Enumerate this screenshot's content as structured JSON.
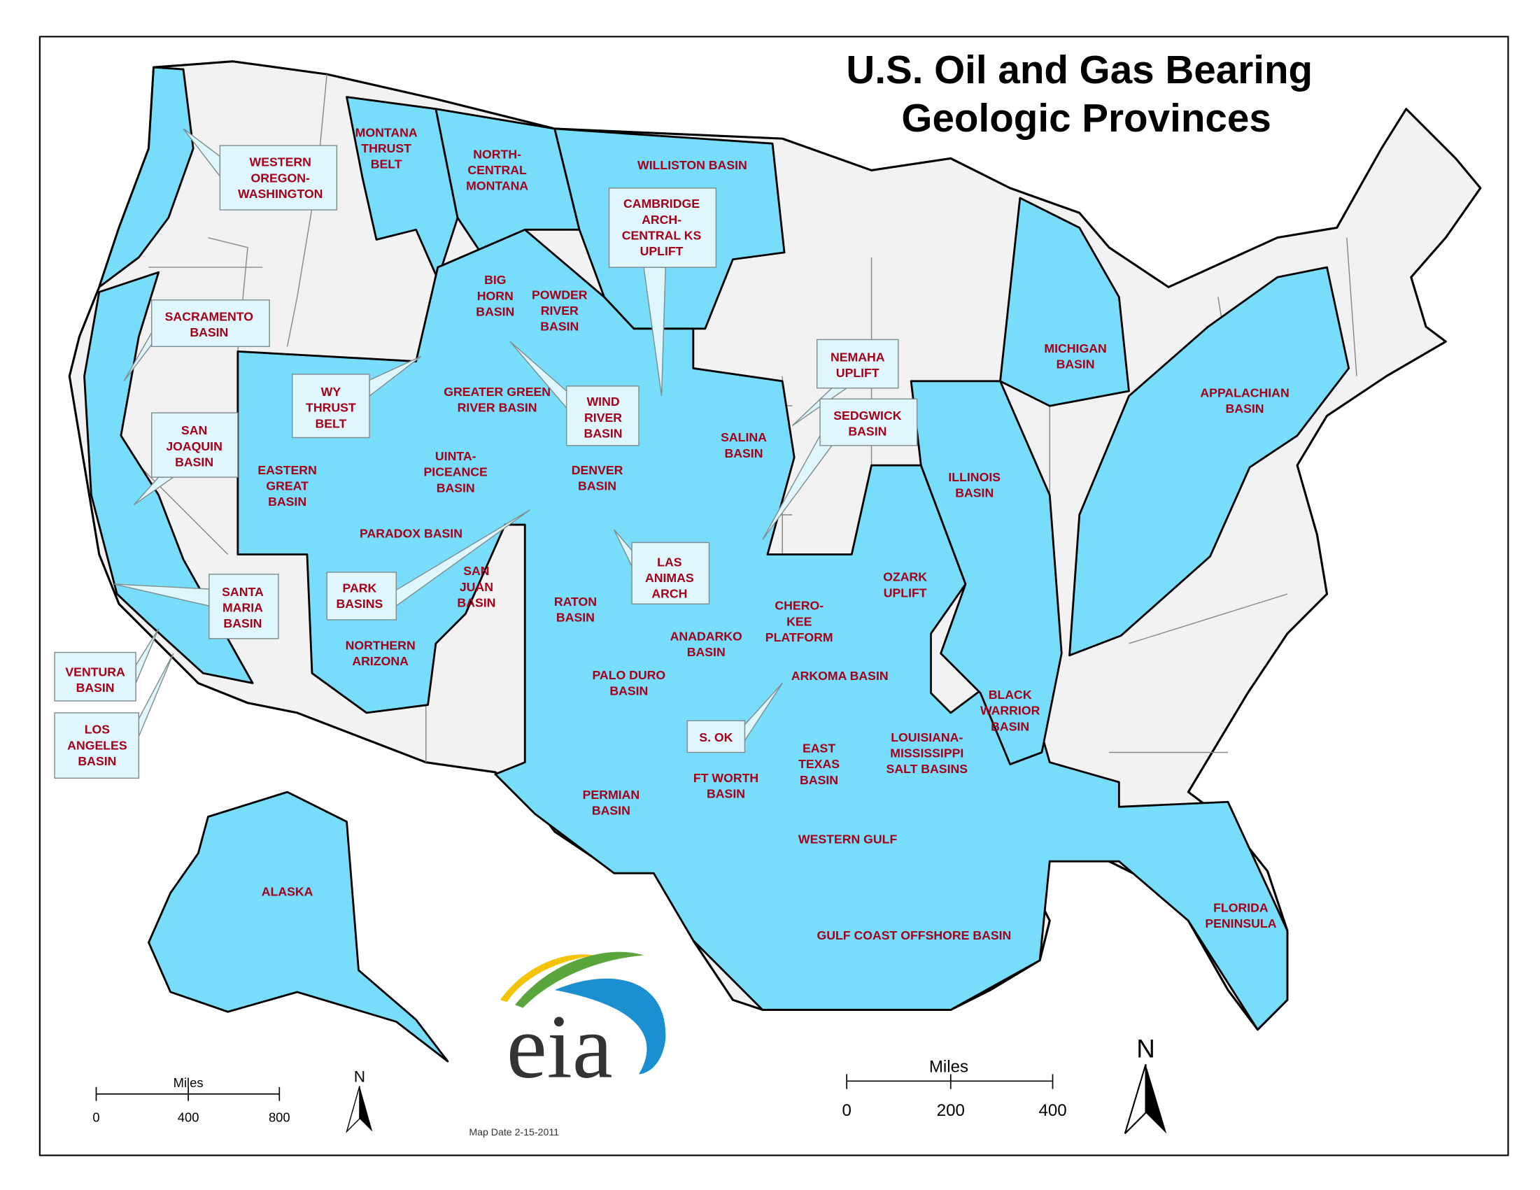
{
  "title": {
    "line1": "U.S. Oil and Gas Bearing",
    "line2": "Geologic Provinces"
  },
  "colors": {
    "province_fill": "#78ddfa",
    "non_province_fill": "#f2f2f2",
    "label_text": "#a3001b",
    "callout_fill": "#dff7fc"
  },
  "labels": [
    {
      "lines": [
        "WESTERN",
        "OREGON-",
        "WASHINGTON"
      ],
      "callout": true
    },
    {
      "lines": [
        "MONTANA",
        "THRUST",
        "BELT"
      ],
      "callout": false
    },
    {
      "lines": [
        "NORTH-",
        "CENTRAL",
        "MONTANA"
      ],
      "callout": false
    },
    {
      "lines": [
        "WILLISTON BASIN"
      ],
      "callout": false
    },
    {
      "lines": [
        "CAMBRIDGE",
        "ARCH-",
        "CENTRAL KS",
        "UPLIFT"
      ],
      "callout": true
    },
    {
      "lines": [
        "BIG",
        "HORN",
        "BASIN"
      ],
      "callout": false
    },
    {
      "lines": [
        "POWDER",
        "RIVER",
        "BASIN"
      ],
      "callout": false
    },
    {
      "lines": [
        "SACRAMENTO",
        "BASIN"
      ],
      "callout": true
    },
    {
      "lines": [
        "WY",
        "THRUST",
        "BELT"
      ],
      "callout": true
    },
    {
      "lines": [
        "GREATER GREEN",
        "RIVER BASIN"
      ],
      "callout": false
    },
    {
      "lines": [
        "WIND",
        "RIVER",
        "BASIN"
      ],
      "callout": true
    },
    {
      "lines": [
        "NEMAHA",
        "UPLIFT"
      ],
      "callout": true
    },
    {
      "lines": [
        "SEDGWICK",
        "BASIN"
      ],
      "callout": true
    },
    {
      "lines": [
        "MICHIGAN",
        "BASIN"
      ],
      "callout": false
    },
    {
      "lines": [
        "APPALACHIAN",
        "BASIN"
      ],
      "callout": false
    },
    {
      "lines": [
        "SALINA",
        "BASIN"
      ],
      "callout": false
    },
    {
      "lines": [
        "SAN",
        "JOAQUIN",
        "BASIN"
      ],
      "callout": true
    },
    {
      "lines": [
        "EASTERN",
        "GREAT",
        "BASIN"
      ],
      "callout": false
    },
    {
      "lines": [
        "UINTA-",
        "PICEANCE",
        "BASIN"
      ],
      "callout": false
    },
    {
      "lines": [
        "DENVER",
        "BASIN"
      ],
      "callout": false
    },
    {
      "lines": [
        "ILLINOIS",
        "BASIN"
      ],
      "callout": false
    },
    {
      "lines": [
        "PARADOX BASIN"
      ],
      "callout": false
    },
    {
      "lines": [
        "LAS",
        "ANIMAS",
        "ARCH"
      ],
      "callout": true
    },
    {
      "lines": [
        "SANTA",
        "MARIA",
        "BASIN"
      ],
      "callout": true
    },
    {
      "lines": [
        "PARK",
        "BASINS"
      ],
      "callout": true
    },
    {
      "lines": [
        "SAN",
        "JUAN",
        "BASIN"
      ],
      "callout": false
    },
    {
      "lines": [
        "RATON",
        "BASIN"
      ],
      "callout": false
    },
    {
      "lines": [
        "OZARK",
        "UPLIFT"
      ],
      "callout": false
    },
    {
      "lines": [
        "CHERO-",
        "KEE",
        "PLATFORM"
      ],
      "callout": false
    },
    {
      "lines": [
        "NORTHERN",
        "ARIZONA"
      ],
      "callout": false
    },
    {
      "lines": [
        "ANADARKO",
        "BASIN"
      ],
      "callout": false
    },
    {
      "lines": [
        "VENTURA",
        "BASIN"
      ],
      "callout": true
    },
    {
      "lines": [
        "PALO DURO",
        "BASIN"
      ],
      "callout": false
    },
    {
      "lines": [
        "ARKOMA BASIN"
      ],
      "callout": false
    },
    {
      "lines": [
        "BLACK",
        "WARRIOR",
        "BASIN"
      ],
      "callout": false
    },
    {
      "lines": [
        "S. OK"
      ],
      "callout": true
    },
    {
      "lines": [
        "LOS",
        "ANGELES",
        "BASIN"
      ],
      "callout": true
    },
    {
      "lines": [
        "LOUISIANA-",
        "MISSISSIPPI",
        "SALT BASINS"
      ],
      "callout": false
    },
    {
      "lines": [
        "EAST",
        "TEXAS",
        "BASIN"
      ],
      "callout": false
    },
    {
      "lines": [
        "FT WORTH",
        "BASIN"
      ],
      "callout": false
    },
    {
      "lines": [
        "PERMIAN",
        "BASIN"
      ],
      "callout": false
    },
    {
      "lines": [
        "WESTERN  GULF"
      ],
      "callout": false
    },
    {
      "lines": [
        "ALASKA"
      ],
      "callout": false
    },
    {
      "lines": [
        "FLORIDA",
        "PENINSULA"
      ],
      "callout": false
    },
    {
      "lines": [
        "GULF COAST OFFSHORE BASIN"
      ],
      "callout": false
    }
  ],
  "scale_alaska": {
    "unit": "Miles",
    "ticks": [
      "0",
      "400",
      "800"
    ]
  },
  "scale_main": {
    "unit": "Miles",
    "ticks": [
      "0",
      "200",
      "400"
    ]
  },
  "north_label": "N",
  "map_date": "Map Date 2-15-2011",
  "logo": {
    "text": "eia",
    "colors": [
      "#f5c400",
      "#5aa63c",
      "#1c8fd0"
    ]
  }
}
